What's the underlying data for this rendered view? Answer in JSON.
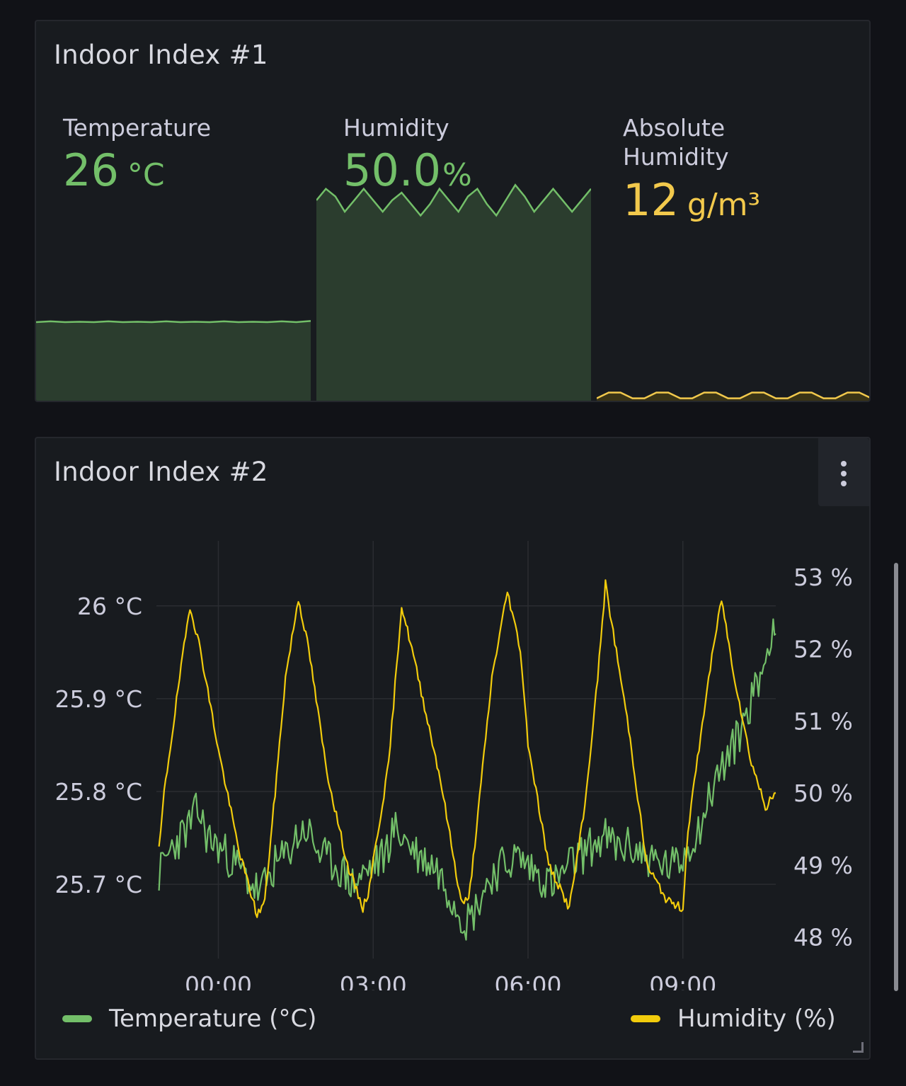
{
  "panel1": {
    "title": "Indoor Index #1",
    "stats": [
      {
        "label": "Temperature",
        "value": "26",
        "unit": "°C",
        "color": "#73bf69",
        "fill": "#2b3d2e",
        "level": 0.21,
        "spark": [
          0.79,
          0.788,
          0.79,
          0.789,
          0.79,
          0.788,
          0.79,
          0.789,
          0.79,
          0.788,
          0.79,
          0.789,
          0.79,
          0.788,
          0.79,
          0.789,
          0.79,
          0.788,
          0.79,
          0.787
        ]
      },
      {
        "label": "Humidity",
        "value": "50.0",
        "unit": "%",
        "color": "#73bf69",
        "fill": "#2b3d2e",
        "level": 0.55,
        "spark": [
          0.47,
          0.44,
          0.46,
          0.5,
          0.47,
          0.44,
          0.47,
          0.5,
          0.47,
          0.45,
          0.48,
          0.51,
          0.48,
          0.44,
          0.47,
          0.5,
          0.46,
          0.44,
          0.48,
          0.51,
          0.47,
          0.43,
          0.46,
          0.5,
          0.47,
          0.44,
          0.47,
          0.5,
          0.47,
          0.44
        ]
      },
      {
        "label": "Absolute Humidity",
        "value": "12",
        "unit": "g/m³",
        "color": "#f2c94c",
        "fill": "#3a3416",
        "level": 0.01,
        "spark": [
          0.99,
          0.975,
          0.975,
          0.99,
          0.99,
          0.975,
          0.975,
          0.99,
          0.99,
          0.975,
          0.975,
          0.99,
          0.99,
          0.975,
          0.975,
          0.99,
          0.99,
          0.975,
          0.975,
          0.99,
          0.99,
          0.975,
          0.975,
          0.99
        ]
      }
    ]
  },
  "panel2": {
    "title": "Indoor Index #2",
    "menu_icon": "kebab-menu-icon"
  },
  "chart_data": {
    "type": "line",
    "title": "Indoor Index #2",
    "x_ticks": [
      "00:00",
      "03:00",
      "06:00",
      "09:00"
    ],
    "x_range_hours": [
      -1.2,
      10.8
    ],
    "x_tick_hours": [
      0,
      3,
      6,
      9
    ],
    "y_left": {
      "unit": "°C",
      "ticks": [
        "25.7 °C",
        "25.8 °C",
        "25.9 °C",
        "26 °C"
      ],
      "tick_values": [
        25.7,
        25.8,
        25.9,
        26.0
      ],
      "range": [
        25.62,
        26.07
      ]
    },
    "y_right": {
      "unit": "%",
      "ticks": [
        "48 %",
        "49 %",
        "50 %",
        "51 %",
        "52 %",
        "53 %"
      ],
      "tick_values": [
        48,
        49,
        50,
        51,
        52,
        53
      ],
      "range": [
        47.7,
        53.5
      ]
    },
    "series": [
      {
        "name": "Temperature (°C)",
        "axis": "left",
        "color": "#73bf69",
        "x": [
          -1.15,
          -0.9,
          -0.6,
          -0.4,
          -0.2,
          0.0,
          0.2,
          0.5,
          0.8,
          1.1,
          1.3,
          1.5,
          1.7,
          2.0,
          2.3,
          2.6,
          2.8,
          3.0,
          3.2,
          3.4,
          3.6,
          3.9,
          4.2,
          4.4,
          4.6,
          4.8,
          4.95,
          5.1,
          5.3,
          5.5,
          5.8,
          6.0,
          6.2,
          6.5,
          6.8,
          7.0,
          7.2,
          7.5,
          7.7,
          8.0,
          8.3,
          8.6,
          8.9,
          9.1,
          9.3,
          9.5,
          9.6,
          9.8,
          10.0,
          10.2,
          10.4,
          10.6,
          10.75,
          10.8
        ],
        "y": [
          25.71,
          25.74,
          25.76,
          25.78,
          25.75,
          25.74,
          25.73,
          25.71,
          25.69,
          25.72,
          25.73,
          25.75,
          25.76,
          25.73,
          25.72,
          25.7,
          25.71,
          25.72,
          25.73,
          25.76,
          25.75,
          25.73,
          25.72,
          25.7,
          25.68,
          25.66,
          25.67,
          25.69,
          25.71,
          25.72,
          25.73,
          25.72,
          25.71,
          25.7,
          25.72,
          25.73,
          25.74,
          25.75,
          25.74,
          25.74,
          25.73,
          25.72,
          25.72,
          25.74,
          25.76,
          25.79,
          25.81,
          25.83,
          25.85,
          25.88,
          25.91,
          25.94,
          25.99,
          25.97
        ]
      },
      {
        "name": "Humidity (%)",
        "axis": "right",
        "color": "#f2cc0c",
        "x": [
          -1.15,
          -1.05,
          -0.75,
          -0.55,
          -0.35,
          0.0,
          0.4,
          0.75,
          0.9,
          1.1,
          1.3,
          1.55,
          1.75,
          2.1,
          2.5,
          2.8,
          2.9,
          3.3,
          3.55,
          3.75,
          4.3,
          4.7,
          4.85,
          5.0,
          5.3,
          5.6,
          5.85,
          6.0,
          6.4,
          6.8,
          7.1,
          7.35,
          7.5,
          7.95,
          8.3,
          8.7,
          9.0,
          9.1,
          9.5,
          9.75,
          9.95,
          10.3,
          10.6,
          10.8
        ],
        "y": [
          49.2,
          50.0,
          51.6,
          52.6,
          52.0,
          50.6,
          49.2,
          48.3,
          48.5,
          50.0,
          51.6,
          52.7,
          52.0,
          50.3,
          49.0,
          48.4,
          48.6,
          50.4,
          52.6,
          52.0,
          50.2,
          48.5,
          48.5,
          49.5,
          51.6,
          52.8,
          52.0,
          50.7,
          49.0,
          48.4,
          49.8,
          51.6,
          52.9,
          50.9,
          49.0,
          48.5,
          48.4,
          49.5,
          51.6,
          52.7,
          51.8,
          50.5,
          49.8,
          50.0
        ]
      }
    ],
    "legend": {
      "position": "bottom",
      "entries": [
        "Temperature (°C)",
        "Humidity (%)"
      ]
    }
  }
}
